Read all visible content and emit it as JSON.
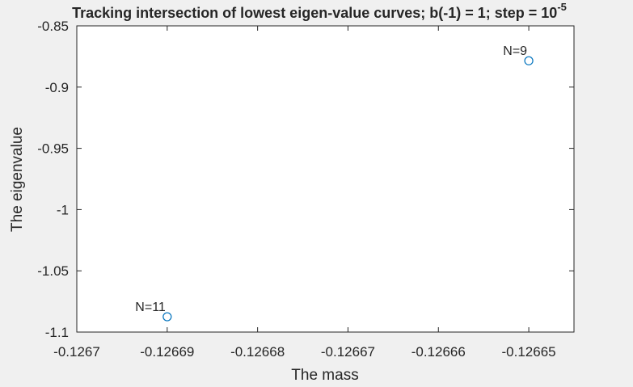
{
  "chart_data": {
    "type": "scatter",
    "title_main": "Tracking intersection of lowest eigen-value curves; b(-1) = 1; step = 10",
    "title_exponent": "-5",
    "xlabel": "The mass",
    "ylabel": "The eigenvalue",
    "xlim": [
      -0.1267,
      -0.126645
    ],
    "ylim": [
      -1.1,
      -0.85
    ],
    "x_ticks": [
      -0.1267,
      -0.12669,
      -0.12668,
      -0.12667,
      -0.12666,
      -0.12665
    ],
    "x_tick_labels": [
      "-0.1267",
      "-0.12669",
      "-0.12668",
      "-0.12667",
      "-0.12666",
      "-0.12665"
    ],
    "y_ticks": [
      -1.1,
      -1.05,
      -1.0,
      -0.95,
      -0.9,
      -0.85
    ],
    "y_tick_labels": [
      "-1.1",
      "-1.05",
      "-1",
      "-0.95",
      "-0.9",
      "-0.85"
    ],
    "grid": false,
    "marker": "circle",
    "marker_color": "#0072bd",
    "points": [
      {
        "x": -0.12665,
        "y": -0.8785,
        "label": "N=9"
      },
      {
        "x": -0.12669,
        "y": -1.0875,
        "label": "N=11"
      }
    ]
  }
}
